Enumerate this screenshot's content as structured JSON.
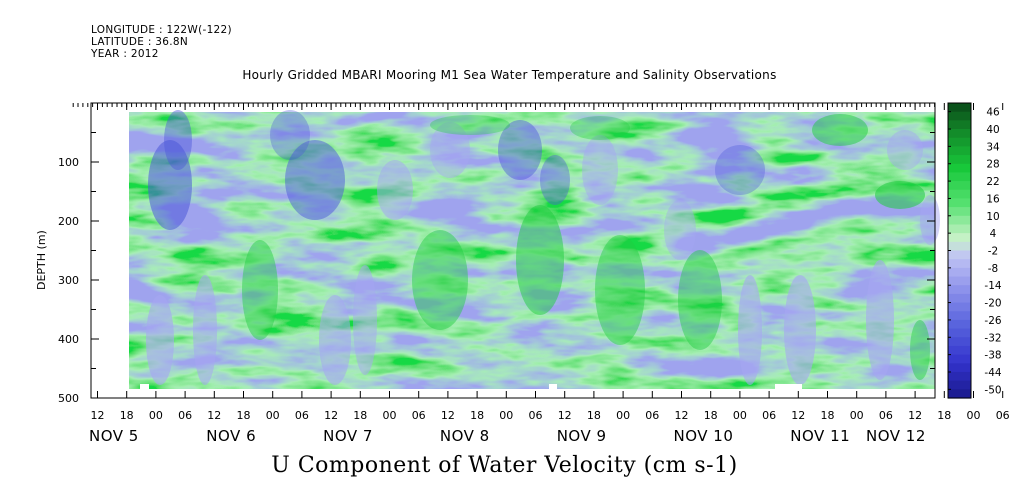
{
  "header": {
    "longitude": "LONGITUDE : 122W(-122)",
    "latitude": "LATITUDE : 36.8N",
    "year": "YEAR : 2012"
  },
  "chart_data": {
    "type": "heatmap",
    "title": "Hourly Gridded MBARI Mooring M1 Sea Water Temperature and Salinity Observations",
    "xlabel": "U Component of Water Velocity (cm s-1)",
    "ylabel": "DEPTH (m)",
    "ylim": [
      500,
      0
    ],
    "y_ticks": [
      100,
      200,
      300,
      400,
      500
    ],
    "data_depth_range": [
      15,
      485
    ],
    "x_hour_labels": [
      "12",
      "18",
      "00",
      "06",
      "12",
      "18",
      "00",
      "06",
      "12",
      "18",
      "00",
      "06",
      "12",
      "18",
      "00",
      "06",
      "12",
      "18",
      "00",
      "06",
      "12",
      "18",
      "00",
      "06",
      "12",
      "18",
      "00",
      "06",
      "12",
      "18",
      "00",
      "06",
      "12"
    ],
    "x_day_labels": [
      "NOV 5",
      "NOV 6",
      "NOV 7",
      "NOV 8",
      "NOV 9",
      "NOV 10",
      "NOV 11",
      "NOV 12"
    ],
    "colorbar": {
      "labels": [
        "46",
        "40",
        "34",
        "28",
        "22",
        "16",
        "10",
        "4",
        "-2",
        "-8",
        "-14",
        "-20",
        "-26",
        "-32",
        "-38",
        "-44",
        "-50"
      ],
      "min": -50,
      "max": 50,
      "colors": {
        "strong_negative": "#1a1a8c",
        "negative": "#4d59d9",
        "weak_negative": "#a6a6f2",
        "near_zero": "#c8f2c8",
        "weak_positive": "#66e680",
        "positive": "#1fcc40",
        "strong_positive": "#0d5c1f"
      }
    }
  }
}
